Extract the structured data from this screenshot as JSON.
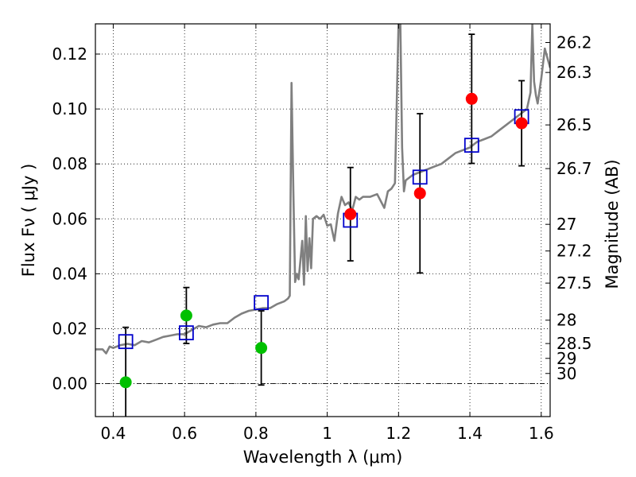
{
  "chart_data": {
    "type": "scatter",
    "xlabel": "Wavelength  λ (μm)",
    "ylabel_left": "Flux  Fν  ( μJy )",
    "ylabel_right": "Magnitude (AB)",
    "xlim": [
      0.35,
      1.625
    ],
    "ylim": [
      -0.012,
      0.131
    ],
    "x_ticks": [
      0.4,
      0.6,
      0.8,
      1.0,
      1.2,
      1.4,
      1.6
    ],
    "x_tick_labels": [
      "0.4",
      "0.6",
      "0.8",
      "1",
      "1.2",
      "1.4",
      "1.6"
    ],
    "y_ticks": [
      0.0,
      0.02,
      0.04,
      0.06,
      0.08,
      0.1,
      0.12
    ],
    "y_tick_labels": [
      "0.00",
      "0.02",
      "0.04",
      "0.06",
      "0.08",
      "0.10",
      "0.12"
    ],
    "mag_ticks": [
      {
        "label": "26.2",
        "flux": 0.1242
      },
      {
        "label": "26.3",
        "flux": 0.1133
      },
      {
        "label": "26.5",
        "flux": 0.0942
      },
      {
        "label": "26.7",
        "flux": 0.0783
      },
      {
        "label": "27",
        "flux": 0.058
      },
      {
        "label": "27.2",
        "flux": 0.0483
      },
      {
        "label": "27.5",
        "flux": 0.0366
      },
      {
        "label": "28",
        "flux": 0.0231
      },
      {
        "label": "28.5",
        "flux": 0.0146
      },
      {
        "label": "29",
        "flux": 0.0092
      },
      {
        "label": "30",
        "flux": 0.0037
      }
    ],
    "grid": true,
    "zero_line": 0.0,
    "spectrum": {
      "color": "#808080",
      "x": [
        0.35,
        0.37,
        0.38,
        0.39,
        0.4,
        0.42,
        0.44,
        0.46,
        0.48,
        0.5,
        0.52,
        0.54,
        0.56,
        0.58,
        0.6,
        0.62,
        0.64,
        0.66,
        0.68,
        0.7,
        0.72,
        0.74,
        0.76,
        0.78,
        0.8,
        0.82,
        0.84,
        0.86,
        0.88,
        0.89,
        0.895,
        0.9,
        0.905,
        0.91,
        0.915,
        0.92,
        0.93,
        0.935,
        0.94,
        0.945,
        0.95,
        0.955,
        0.96,
        0.97,
        0.98,
        0.99,
        1.0,
        1.01,
        1.02,
        1.03,
        1.04,
        1.05,
        1.06,
        1.07,
        1.08,
        1.09,
        1.1,
        1.12,
        1.14,
        1.16,
        1.17,
        1.18,
        1.19,
        1.2,
        1.205,
        1.21,
        1.215,
        1.22,
        1.24,
        1.26,
        1.28,
        1.3,
        1.32,
        1.34,
        1.36,
        1.38,
        1.4,
        1.42,
        1.44,
        1.46,
        1.48,
        1.5,
        1.52,
        1.54,
        1.56,
        1.57,
        1.575,
        1.58,
        1.585,
        1.59,
        1.6,
        1.61,
        1.625
      ],
      "y": [
        0.0125,
        0.0125,
        0.011,
        0.0135,
        0.013,
        0.014,
        0.0145,
        0.014,
        0.0155,
        0.015,
        0.016,
        0.017,
        0.0175,
        0.018,
        0.018,
        0.0195,
        0.021,
        0.0205,
        0.0215,
        0.022,
        0.022,
        0.024,
        0.0255,
        0.0265,
        0.027,
        0.0275,
        0.0275,
        0.029,
        0.03,
        0.031,
        0.032,
        0.1095,
        0.07,
        0.037,
        0.04,
        0.038,
        0.052,
        0.036,
        0.061,
        0.041,
        0.053,
        0.042,
        0.06,
        0.061,
        0.06,
        0.0615,
        0.0575,
        0.058,
        0.052,
        0.062,
        0.068,
        0.065,
        0.066,
        0.063,
        0.068,
        0.067,
        0.068,
        0.068,
        0.069,
        0.064,
        0.07,
        0.071,
        0.073,
        0.131,
        0.131,
        0.086,
        0.07,
        0.074,
        0.076,
        0.077,
        0.078,
        0.079,
        0.08,
        0.082,
        0.084,
        0.085,
        0.086,
        0.088,
        0.089,
        0.09,
        0.092,
        0.094,
        0.096,
        0.098,
        0.1,
        0.106,
        0.131,
        0.11,
        0.105,
        0.102,
        0.111,
        0.122,
        0.115
      ]
    },
    "model_points": {
      "marker": "open-square",
      "color": "#0000cc",
      "x": [
        0.435,
        0.605,
        0.815,
        1.065,
        1.26,
        1.405,
        1.545
      ],
      "y": [
        0.0153,
        0.0185,
        0.0295,
        0.0595,
        0.0752,
        0.0868,
        0.0972
      ]
    },
    "series": [
      {
        "marker": "filled-circle",
        "color": "#00c000",
        "x": [
          0.435,
          0.605,
          0.815
        ],
        "y": [
          0.0005,
          0.0248,
          0.013
        ],
        "yerr": [
          0.02,
          0.0102,
          0.0135
        ]
      },
      {
        "marker": "filled-circle",
        "color": "#ff0000",
        "x": [
          1.065,
          1.26,
          1.405,
          1.545
        ],
        "y": [
          0.0617,
          0.0693,
          0.1037,
          0.0948
        ],
        "yerr": [
          0.017,
          0.029,
          0.0235,
          0.0155
        ]
      }
    ]
  }
}
